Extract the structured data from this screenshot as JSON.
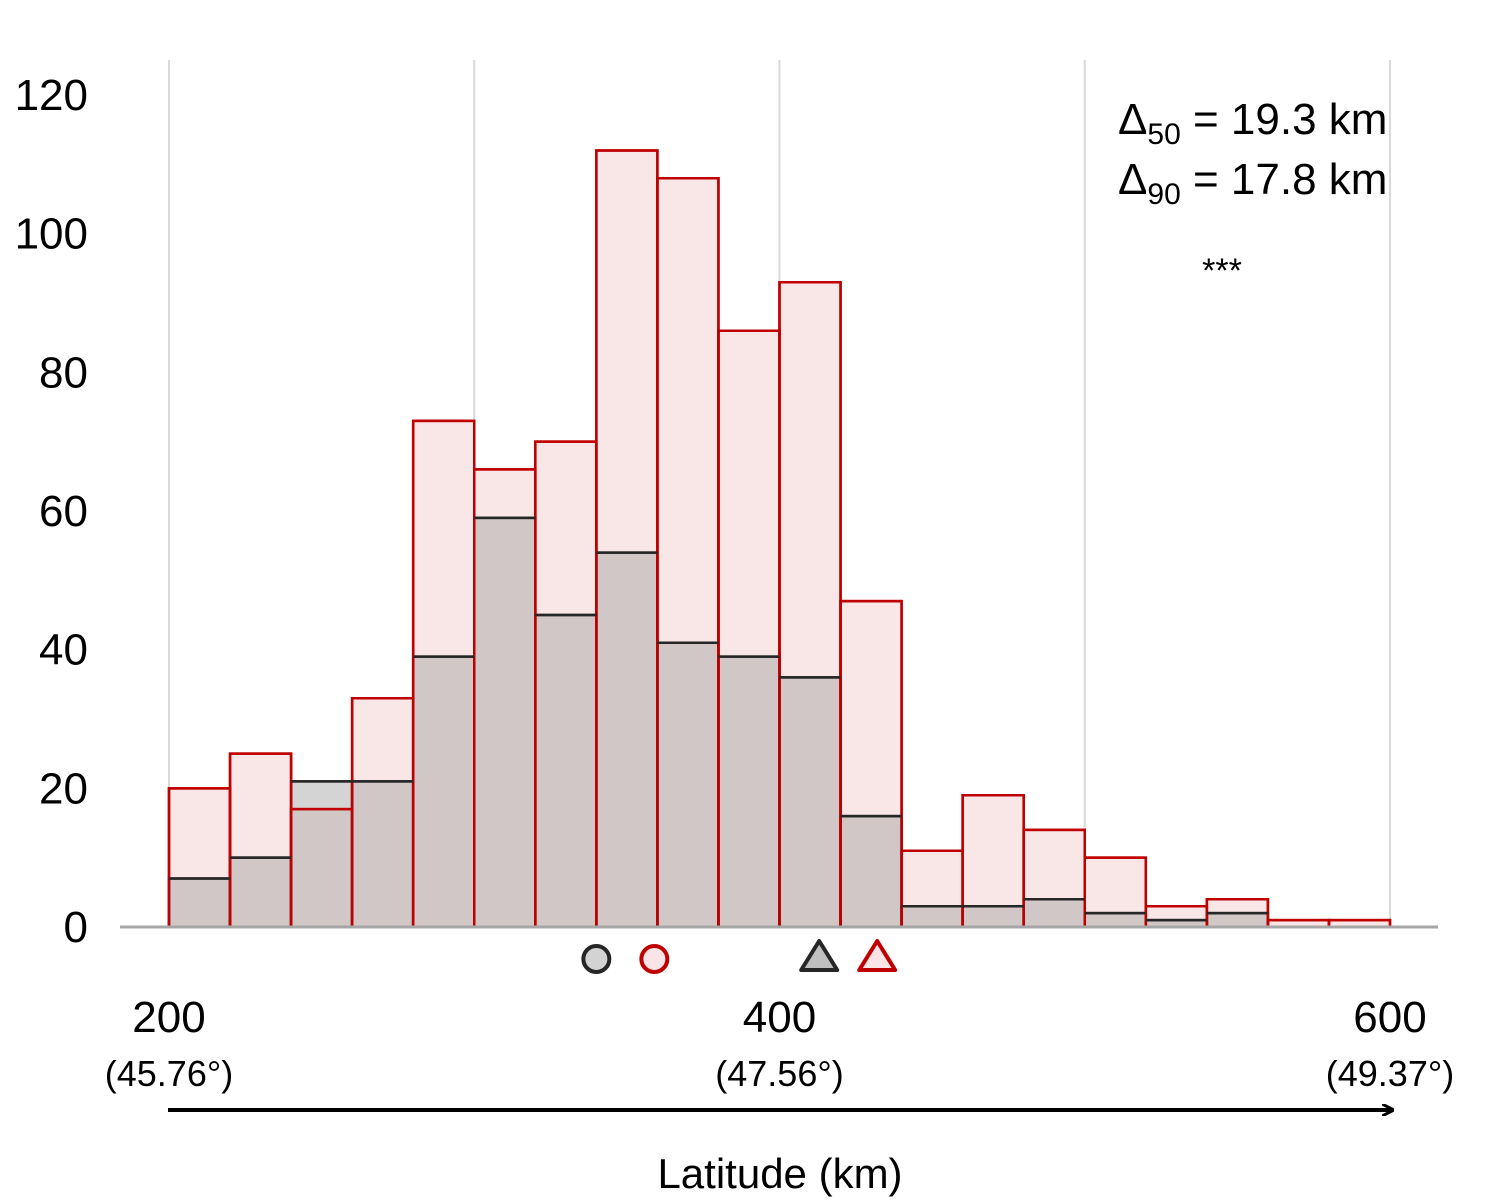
{
  "chart_data": {
    "type": "bar",
    "title": "",
    "xlabel": "Latitude (km)",
    "ylabel": "",
    "xlim": [
      200,
      600
    ],
    "ylim": [
      0,
      120
    ],
    "grid": "vertical",
    "y_ticks": [
      0,
      20,
      40,
      60,
      80,
      100,
      120
    ],
    "x_ticks": [
      {
        "value": 200,
        "label": "200",
        "sub": "(45.76°)"
      },
      {
        "value": 400,
        "label": "400",
        "sub": "(47.56°)"
      },
      {
        "value": 600,
        "label": "600",
        "sub": "(49.37°)"
      }
    ],
    "bin_width": 20,
    "bin_starts": [
      200,
      220,
      240,
      260,
      280,
      300,
      320,
      340,
      360,
      380,
      400,
      420,
      440,
      460,
      480,
      500,
      520,
      540,
      560,
      580
    ],
    "series": [
      {
        "values": [
          7,
          10,
          21,
          21,
          39,
          59,
          45,
          54,
          41,
          39,
          36,
          16,
          3,
          3,
          4,
          2,
          1,
          2,
          0,
          0
        ],
        "color": "#a0a0a0",
        "edge_color": "#262626"
      },
      {
        "values": [
          20,
          25,
          17,
          33,
          73,
          66,
          70,
          112,
          108,
          86,
          93,
          47,
          11,
          19,
          14,
          10,
          3,
          4,
          1,
          1
        ],
        "color": "#e8a8ad",
        "edge_color": "#c00000"
      }
    ],
    "markers": [
      {
        "shape": "circle",
        "x": 340,
        "color": "#262626",
        "fill": "#d3d3d3"
      },
      {
        "shape": "circle",
        "x": 359,
        "color": "#c00000",
        "fill": "#fbe4e6"
      },
      {
        "shape": "triangle",
        "x": 413,
        "color": "#262626",
        "fill": "#bfbfbf"
      },
      {
        "shape": "triangle",
        "x": 432,
        "color": "#c00000",
        "fill": "#fbe4e6"
      }
    ],
    "annotations": {
      "delta50_symbol": "Δ",
      "delta50_sub": "50",
      "delta50_value": " = 19.3 km",
      "delta90_symbol": "Δ",
      "delta90_sub": "90",
      "delta90_value": " = 17.8 km",
      "significance": "***"
    }
  }
}
